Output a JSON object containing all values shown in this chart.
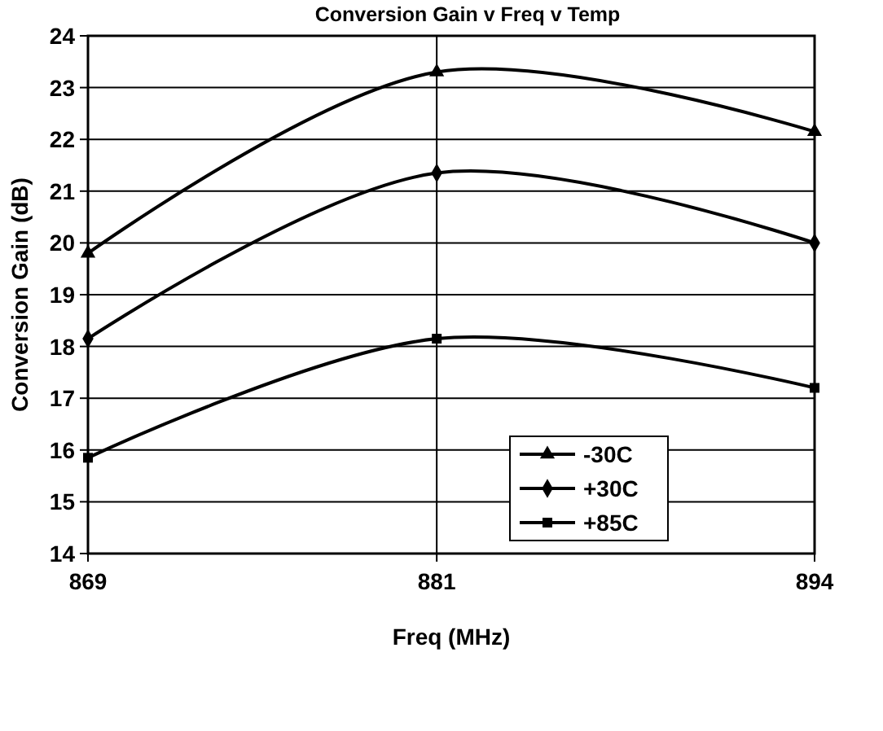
{
  "chart_data": {
    "type": "line",
    "title": "Conversion Gain v Freq v Temp",
    "xlabel": "Freq (MHz)",
    "ylabel": "Conversion Gain (dB)",
    "x": [
      869,
      881,
      894
    ],
    "xlim": [
      869,
      894
    ],
    "xticks": [
      869,
      881,
      894
    ],
    "ylim": [
      14,
      24
    ],
    "yticks": [
      14,
      15,
      16,
      17,
      18,
      19,
      20,
      21,
      22,
      23,
      24
    ],
    "grid": true,
    "legend": "bottom right",
    "series": [
      {
        "name": "-30C",
        "color": "#000000",
        "marker": "triangle",
        "values": [
          19.8,
          23.3,
          22.15
        ]
      },
      {
        "name": "+30C",
        "color": "#000000",
        "marker": "diamond",
        "values": [
          18.15,
          21.35,
          20.0
        ]
      },
      {
        "name": "+85C",
        "color": "#000000",
        "marker": "square",
        "values": [
          15.85,
          18.15,
          17.2
        ]
      }
    ]
  }
}
